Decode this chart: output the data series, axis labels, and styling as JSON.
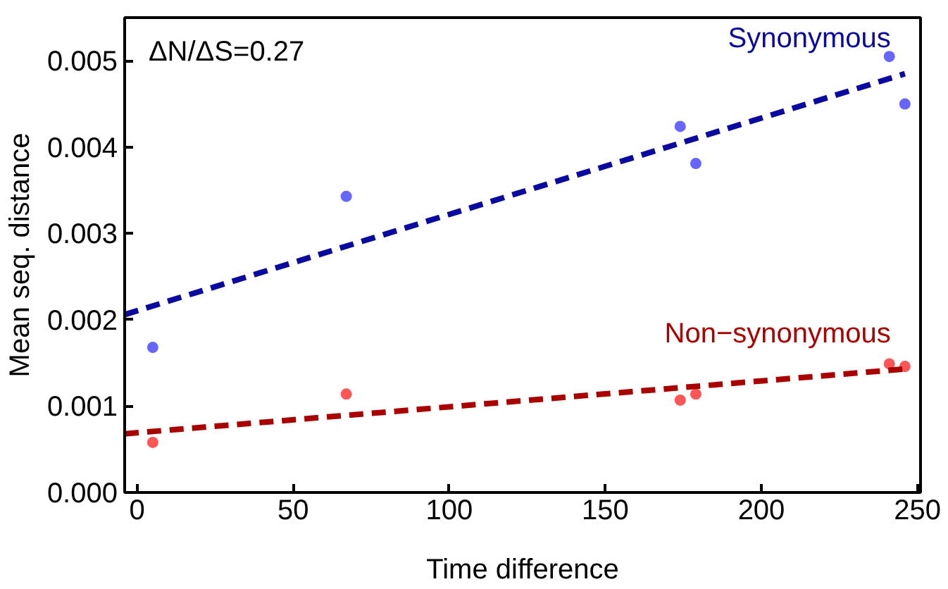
{
  "chart_data": {
    "type": "scatter",
    "xlabel": "Time difference",
    "ylabel": "Mean seq. distance",
    "annotations": [
      "ΔN/ΔS=0.27"
    ],
    "xlim": [
      -4,
      251
    ],
    "ylim": [
      0,
      0.0055
    ],
    "xticks": [
      0,
      50,
      100,
      150,
      200,
      250
    ],
    "yticks": [
      {
        "value": 0,
        "label": "0.000"
      },
      {
        "value": 0.001,
        "label": "0.001"
      },
      {
        "value": 0.002,
        "label": "0.002"
      },
      {
        "value": 0.003,
        "label": "0.003"
      },
      {
        "value": 0.004,
        "label": "0.004"
      },
      {
        "value": 0.005,
        "label": "0.005"
      }
    ],
    "grid": false,
    "marker": "circle",
    "series": [
      {
        "color": "#6666ff",
        "x": [
          5,
          67,
          174,
          179,
          241,
          246
        ],
        "values": [
          0.00168,
          0.00343,
          0.00424,
          0.00381,
          0.00505,
          0.0045
        ]
      },
      {
        "color": "#ff5555",
        "x": [
          5,
          67,
          174,
          179,
          241,
          246
        ],
        "values": [
          0.00058,
          0.00114,
          0.00107,
          0.00114,
          0.00149,
          0.00146
        ]
      },
      {
        "type": "line",
        "name": "Synonymous",
        "color": "#0a0aa0",
        "line_style": "dashed",
        "marker": "none",
        "x": [
          -4,
          246
        ],
        "values": [
          0.00206,
          0.00485
        ]
      },
      {
        "type": "line",
        "name": "Non−synonymous",
        "color": "#aa0000",
        "line_style": "dashed",
        "marker": "none",
        "x": [
          -4,
          246
        ],
        "values": [
          0.00068,
          0.00143
        ]
      }
    ]
  }
}
